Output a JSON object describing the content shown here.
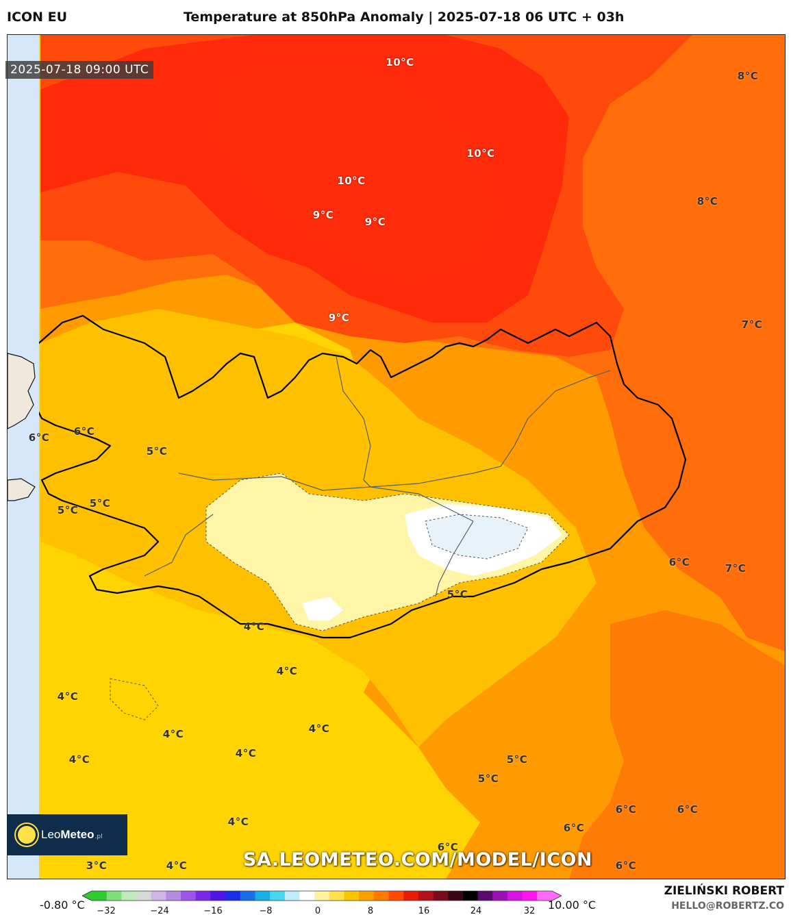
{
  "header": {
    "model": "ICON EU",
    "title": "Temperature at 850hPa Anomaly | 2025-07-18 06 UTC + 03h"
  },
  "map": {
    "timestamp": "2025-07-18 09:00 UTC",
    "watermark": "SA.LEOMETEO.COM/MODEL/ICON",
    "logo": {
      "name": "LeoMeteo",
      "prefix": "Leo",
      "suffix": "Meteo",
      "tld": ".pl"
    },
    "colors": {
      "red_warm": "#ff2a0a",
      "red_orange": "#ff4a0c",
      "orange": "#ff6e0a",
      "orange_light": "#ff9a00",
      "amber": "#ffc000",
      "yellow": "#ffd400",
      "pale_yellow": "#fff5a6",
      "white": "#ffffff",
      "pale_blue": "#e8f2fb",
      "strip_blue": "#d6e7fa",
      "coast": "#000000"
    },
    "labels": [
      {
        "text": "10°C",
        "style": "light"
      },
      {
        "text": "8°C",
        "style": "dark"
      },
      {
        "text": "10°C",
        "style": "light"
      },
      {
        "text": "10°C",
        "style": "light"
      },
      {
        "text": "8°C",
        "style": "dark"
      },
      {
        "text": "9°C",
        "style": "light"
      },
      {
        "text": "9°C",
        "style": "light"
      },
      {
        "text": "9°C",
        "style": "light"
      },
      {
        "text": "7°C",
        "style": "dark"
      },
      {
        "text": "6°C",
        "style": "dark"
      },
      {
        "text": "6°C",
        "style": "dark"
      },
      {
        "text": "5°C",
        "style": "dark"
      },
      {
        "text": "5°C",
        "style": "dark"
      },
      {
        "text": "5°C",
        "style": "dark"
      },
      {
        "text": "6°C",
        "style": "dark"
      },
      {
        "text": "7°C",
        "style": "dark"
      },
      {
        "text": "5°C",
        "style": "dark"
      },
      {
        "text": "4°C",
        "style": "dark"
      },
      {
        "text": "4°C",
        "style": "dark"
      },
      {
        "text": "4°C",
        "style": "dark"
      },
      {
        "text": "4°C",
        "style": "dark"
      },
      {
        "text": "4°C",
        "style": "dark"
      },
      {
        "text": "4°C",
        "style": "dark"
      },
      {
        "text": "4°C",
        "style": "dark"
      },
      {
        "text": "5°C",
        "style": "dark"
      },
      {
        "text": "5°C",
        "style": "dark"
      },
      {
        "text": "6°C",
        "style": "dark"
      },
      {
        "text": "6°C",
        "style": "dark"
      },
      {
        "text": "6°C",
        "style": "dark"
      },
      {
        "text": "4°C",
        "style": "dark"
      },
      {
        "text": "6°C",
        "style": "dark"
      },
      {
        "text": "3°C",
        "style": "dark"
      },
      {
        "text": "4°C",
        "style": "dark"
      },
      {
        "text": "6°C",
        "style": "dark"
      }
    ]
  },
  "colorbar": {
    "min_label": "-0.80 °C",
    "max_label": "10.00 °C",
    "ticks": [
      "−32",
      "−24",
      "−16",
      "−8",
      "0",
      "8",
      "16",
      "24",
      "32"
    ],
    "colors": [
      "#2ecc30",
      "#7fe07a",
      "#bfe9b8",
      "#d8d8d8",
      "#cdb6e6",
      "#b48be0",
      "#9c55e6",
      "#7a28e6",
      "#4f14e6",
      "#1a2ee6",
      "#1a6ee6",
      "#1aaee6",
      "#46d6f0",
      "#bfeefa",
      "#ffffff",
      "#fff3a0",
      "#ffe14a",
      "#ffc400",
      "#ffa000",
      "#ff7a00",
      "#ff4a00",
      "#e81a0a",
      "#b4101a",
      "#7a0a1e",
      "#3a0614",
      "#000000",
      "#5a0a6e",
      "#9a10b4",
      "#d614e0",
      "#ff14f0",
      "#ff6af6"
    ]
  },
  "footer": {
    "author": "ZIELIŃSKI ROBERT",
    "email": "HELLO@ROBERTZ.CO"
  }
}
